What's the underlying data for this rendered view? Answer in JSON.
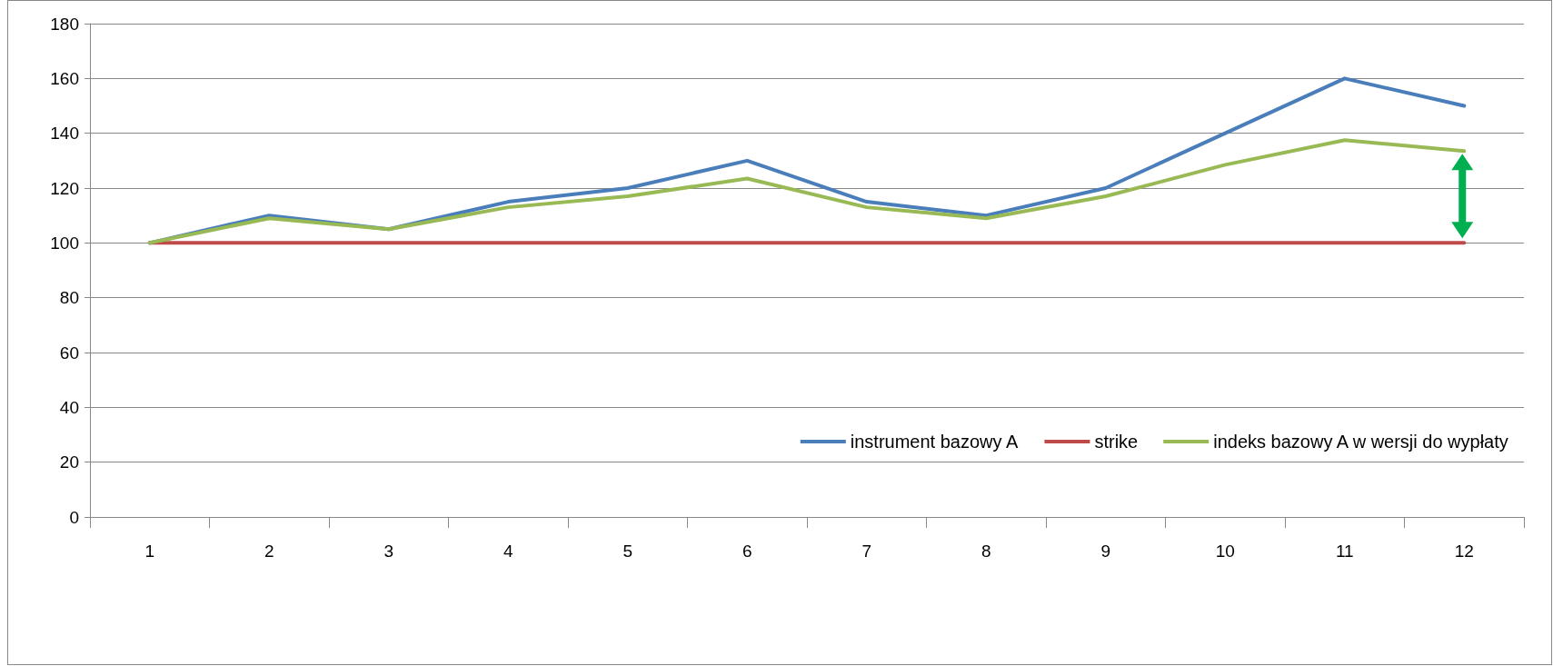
{
  "chart_data": {
    "type": "line",
    "categories": [
      "1",
      "2",
      "3",
      "4",
      "5",
      "6",
      "7",
      "8",
      "9",
      "10",
      "11",
      "12"
    ],
    "series": [
      {
        "name": "instrument bazowy A",
        "color": "#4a7ebb",
        "values": [
          100,
          110,
          105,
          115,
          120,
          130,
          115,
          110,
          120,
          140,
          160,
          150
        ]
      },
      {
        "name": "strike",
        "color": "#be4b48",
        "values": [
          100,
          100,
          100,
          100,
          100,
          100,
          100,
          100,
          100,
          100,
          100,
          100
        ]
      },
      {
        "name": "indeks bazowy A w wersji do wypłaty",
        "color": "#98b954",
        "values": [
          100,
          109,
          105,
          113,
          117,
          123.5,
          113,
          109,
          117,
          128.5,
          137.5,
          133.5
        ]
      }
    ],
    "ylim": [
      0,
      180
    ],
    "yticks": [
      0,
      20,
      40,
      60,
      80,
      100,
      120,
      140,
      160,
      180
    ],
    "grid": "y",
    "legend": "bottom right",
    "marker": "none",
    "line_style": "solid"
  }
}
